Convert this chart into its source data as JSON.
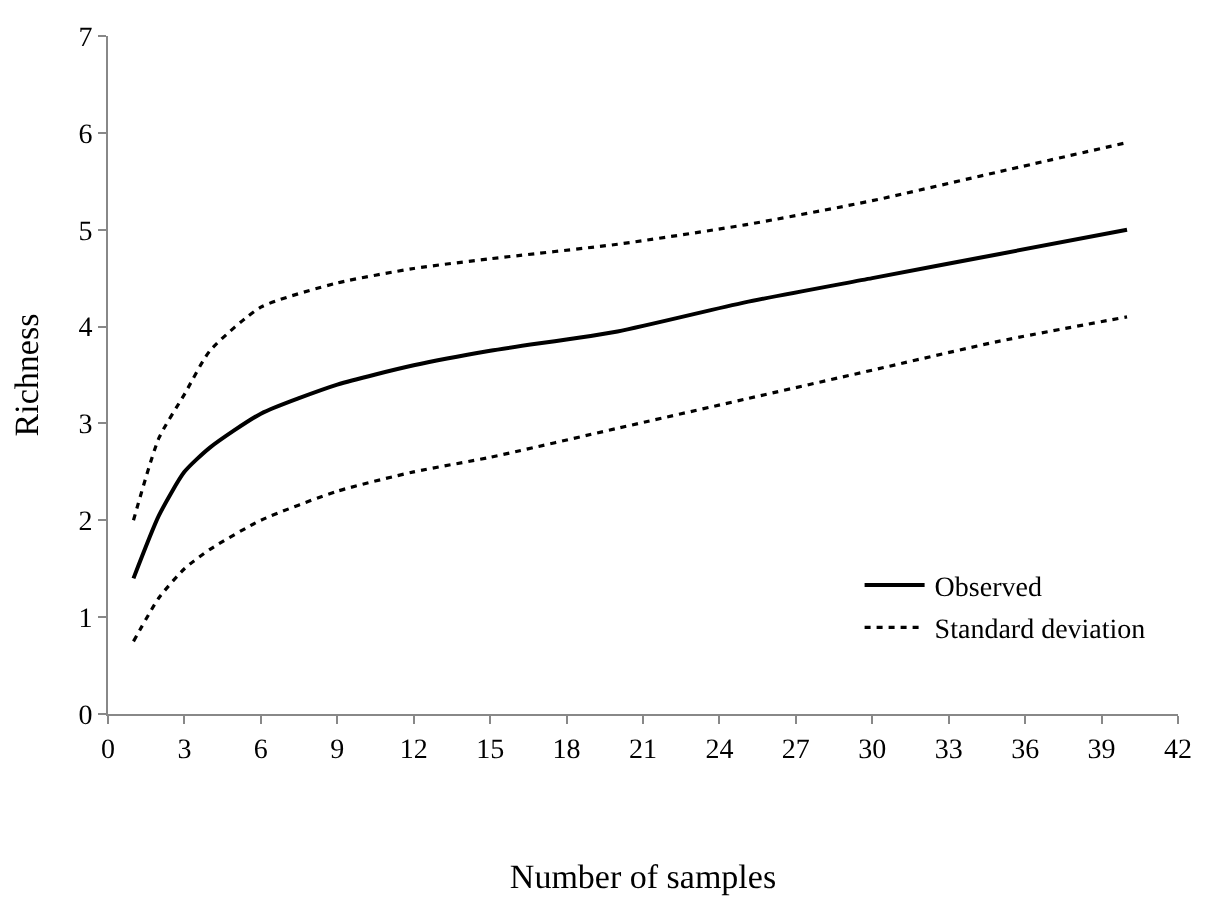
{
  "chart_data": {
    "type": "line",
    "xlabel": "Number of samples",
    "ylabel": "Richness",
    "xlim": [
      0,
      42
    ],
    "xticks": [
      0,
      3,
      6,
      9,
      12,
      15,
      18,
      21,
      24,
      27,
      30,
      33,
      36,
      39,
      42
    ],
    "ylim": [
      0,
      7
    ],
    "yticks": [
      0,
      1,
      2,
      3,
      4,
      5,
      6,
      7
    ],
    "legend": "bottom right",
    "marker": "none",
    "series": [
      {
        "name": "Observed",
        "color": "#000000",
        "line_style": "solid",
        "x": [
          1,
          2,
          3,
          4,
          6,
          9,
          12,
          15,
          20,
          25,
          30,
          35,
          40
        ],
        "values": [
          1.4,
          2.05,
          2.5,
          2.75,
          3.1,
          3.4,
          3.6,
          3.75,
          3.95,
          4.25,
          4.5,
          4.75,
          5.0
        ]
      },
      {
        "name": "Standard deviation",
        "color": "#000000",
        "line_style": "dotted",
        "x": [
          1,
          2,
          3,
          4,
          6,
          9,
          12,
          15,
          20,
          25,
          30,
          35,
          40
        ],
        "values": [
          2.0,
          2.85,
          3.3,
          3.75,
          4.2,
          4.45,
          4.6,
          4.7,
          4.85,
          5.05,
          5.3,
          5.6,
          5.9
        ]
      },
      {
        "color": "#000000",
        "line_style": "dotted",
        "x": [
          1,
          2,
          3,
          4,
          6,
          9,
          12,
          15,
          20,
          25,
          30,
          35,
          40
        ],
        "values": [
          0.75,
          1.2,
          1.5,
          1.7,
          2.0,
          2.3,
          2.5,
          2.65,
          2.95,
          3.25,
          3.55,
          3.85,
          4.1
        ]
      }
    ]
  }
}
